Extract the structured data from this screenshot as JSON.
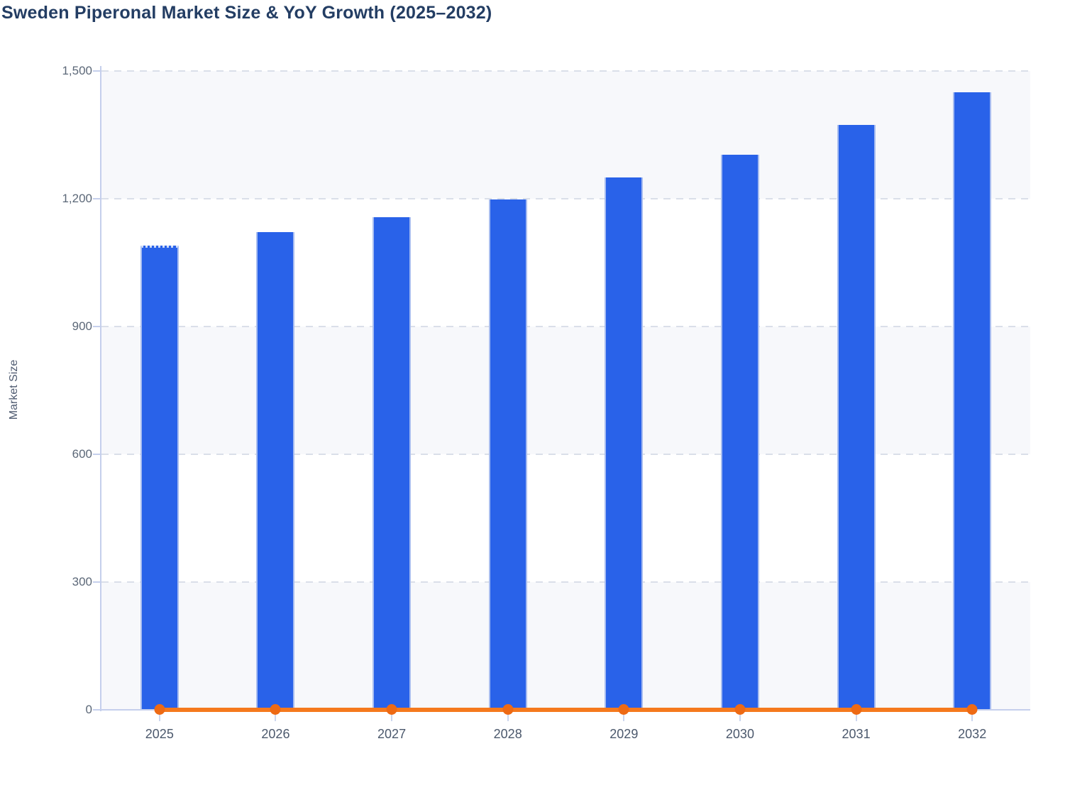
{
  "chart_data": {
    "type": "bar",
    "title": "Sweden Piperonal Market Size & YoY Growth (2025–2032)",
    "ylabel": "Market Size",
    "xlabel": "",
    "categories": [
      "2025",
      "2026",
      "2027",
      "2028",
      "2029",
      "2030",
      "2031",
      "2032"
    ],
    "series": [
      {
        "name": "Market Size",
        "type": "bar",
        "color": "#2962e9",
        "edge_color": "#a8bdf0",
        "values": [
          1090,
          1122,
          1156,
          1198,
          1250,
          1303,
          1373,
          1450
        ]
      },
      {
        "name": "YoY Growth",
        "type": "line",
        "color": "#f5791d",
        "marker_color": "#ee6a14",
        "values": [
          0,
          0,
          0,
          0,
          0,
          0,
          0,
          0
        ]
      }
    ],
    "ylim": [
      0,
      1500
    ],
    "yticks": [
      {
        "value": 1500,
        "label": "1,500"
      },
      {
        "value": 1200,
        "label": "1,200"
      },
      {
        "value": 900,
        "label": "900"
      },
      {
        "value": 600,
        "label": "600"
      },
      {
        "value": 300,
        "label": "300"
      },
      {
        "value": 0,
        "label": "0"
      }
    ],
    "grid": "horizontal-dashed",
    "legend_position": "none",
    "colors": {
      "title": "#233d63",
      "axis_line": "#c5cfec",
      "gridline": "#dadfe9",
      "band_light": "#f7f8fb",
      "band_white": "#ffffff",
      "ytick_text": "#5c6878",
      "xtick_text": "#4b586c",
      "ylabel_text": "#4e5a70"
    }
  }
}
